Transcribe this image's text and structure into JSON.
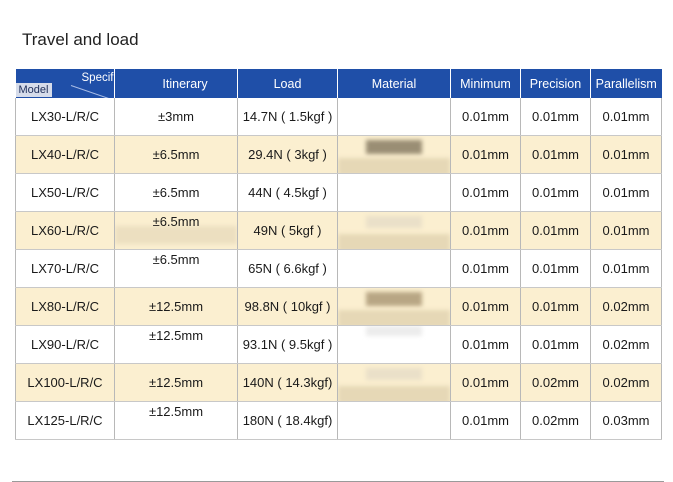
{
  "title": "Travel and load",
  "header": {
    "specifications": "Specifications",
    "model": "Model",
    "itinerary": "Itinerary",
    "load": "Load",
    "material": "Material",
    "minimum_scale": "Minimum",
    "precision": "Precision",
    "parallelism": "Parallelism"
  },
  "rows": [
    {
      "model": "LX30-L/R/C",
      "itinerary": "±3mm",
      "load": "14.7N ( 1.5kgf )",
      "minimum": "0.01mm",
      "precision": "0.01mm",
      "parallelism": "0.01mm"
    },
    {
      "model": "LX40-L/R/C",
      "itinerary": "±6.5mm",
      "load": "29.4N ( 3kgf )",
      "minimum": "0.01mm",
      "precision": "0.01mm",
      "parallelism": "0.01mm"
    },
    {
      "model": "LX50-L/R/C",
      "itinerary": "±6.5mm",
      "load": "44N ( 4.5kgf )",
      "minimum": "0.01mm",
      "precision": "0.01mm",
      "parallelism": "0.01mm"
    },
    {
      "model": "LX60-L/R/C",
      "itinerary": "±6.5mm",
      "load": "49N ( 5kgf )",
      "minimum": "0.01mm",
      "precision": "0.01mm",
      "parallelism": "0.01mm"
    },
    {
      "model": "LX70-L/R/C",
      "itinerary": "±6.5mm",
      "load": "65N ( 6.6kgf )",
      "minimum": "0.01mm",
      "precision": "0.01mm",
      "parallelism": "0.01mm"
    },
    {
      "model": "LX80-L/R/C",
      "itinerary": "±12.5mm",
      "load": "98.8N ( 10kgf )",
      "minimum": "0.01mm",
      "precision": "0.01mm",
      "parallelism": "0.02mm"
    },
    {
      "model": "LX90-L/R/C",
      "itinerary": "±12.5mm",
      "load": "93.1N ( 9.5kgf )",
      "minimum": "0.01mm",
      "precision": "0.01mm",
      "parallelism": "0.02mm"
    },
    {
      "model": "LX100-L/R/C",
      "itinerary": "±12.5mm",
      "load": "140N ( 14.3kgf)",
      "minimum": "0.01mm",
      "precision": "0.02mm",
      "parallelism": "0.02mm"
    },
    {
      "model": "LX125-L/R/C",
      "itinerary": "±12.5mm",
      "load": "180N ( 18.4kgf)",
      "minimum": "0.01mm",
      "precision": "0.02mm",
      "parallelism": "0.03mm"
    }
  ],
  "colors": {
    "header_bg": "#1f4fa8",
    "alt_row_bg": "#fbefd0",
    "plain_row_bg": "#ffffff"
  }
}
